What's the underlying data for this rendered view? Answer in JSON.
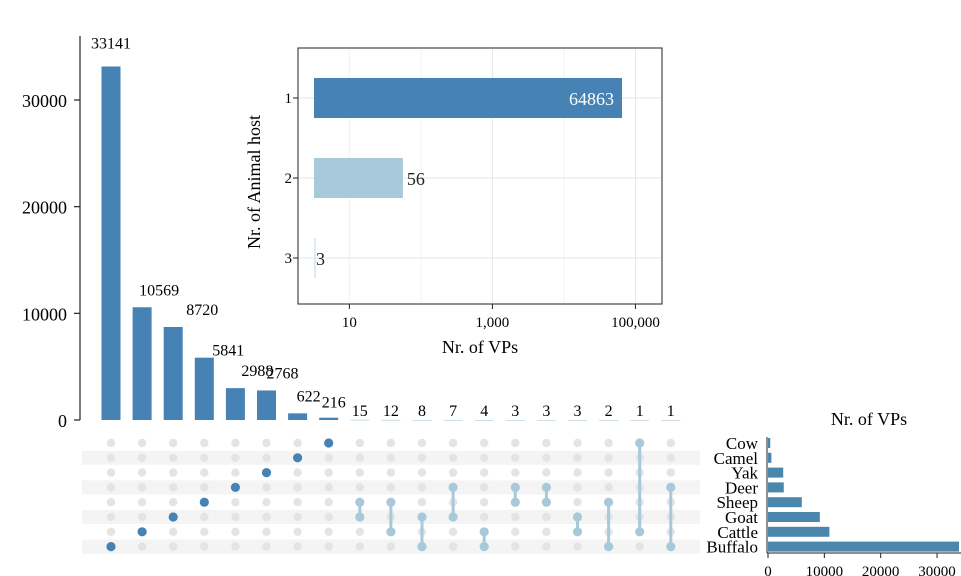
{
  "chart_data": [
    {
      "type": "bar",
      "panel": "intersection-sizes",
      "values": [
        33141,
        10569,
        8720,
        5841,
        2988,
        2768,
        622,
        216,
        15,
        12,
        8,
        7,
        4,
        3,
        3,
        3,
        2,
        1,
        1
      ],
      "value_labels": [
        "33141",
        "10569",
        "8720",
        "5841",
        "2988",
        "2768",
        "622",
        "216",
        "15",
        "12",
        "8",
        "7",
        "4",
        "3",
        "3",
        "3",
        "2",
        "1",
        "1"
      ],
      "ylim": [
        0,
        36000
      ],
      "yticks": [
        0,
        10000,
        20000,
        30000
      ],
      "ytick_labels": [
        "0",
        "10000",
        "20000",
        "30000"
      ],
      "bar_color": "#4682b4",
      "small_bar_color": "#a8c8d8"
    },
    {
      "type": "bar",
      "orientation": "horizontal",
      "panel": "inset-animal-host-count",
      "categories": [
        "1",
        "2",
        "3"
      ],
      "values": [
        64863,
        56,
        3
      ],
      "value_labels": [
        "64863",
        "56",
        "3"
      ],
      "colors": [
        "#4682b4",
        "#a7c9da",
        "#dde9f5"
      ],
      "xlabel": "Nr. of VPs",
      "ylabel": "Nr. of Animal host",
      "xscale": "log",
      "xlim": [
        1,
        200000
      ],
      "xticks": [
        10,
        1000,
        100000
      ],
      "xtick_labels": [
        "10",
        "1,000",
        "100,000"
      ],
      "grid": true
    },
    {
      "type": "bar",
      "orientation": "horizontal",
      "panel": "set-sizes",
      "categories": [
        "Cow",
        "Camel",
        "Yak",
        "Deer",
        "Sheep",
        "Goat",
        "Cattle",
        "Buffalo"
      ],
      "values": [
        400,
        600,
        2700,
        2800,
        6000,
        9200,
        10900,
        33900
      ],
      "xlabel": "Nr. of VPs",
      "xlim": [
        0,
        30000
      ],
      "xticks": [
        0,
        10000,
        20000,
        30000
      ],
      "xtick_labels": [
        "0",
        "10000",
        "20000",
        "30000"
      ],
      "bar_color": "#4b86ad"
    },
    {
      "type": "table",
      "panel": "intersection-matrix",
      "sets_top_to_bottom": [
        "Cow",
        "Camel",
        "Yak",
        "Deer",
        "Sheep",
        "Goat",
        "Cattle",
        "Buffalo"
      ],
      "columns": [
        [
          7
        ],
        [
          6
        ],
        [
          5
        ],
        [
          4
        ],
        [
          3
        ],
        [
          2
        ],
        [
          1
        ],
        [
          0
        ],
        [
          4,
          5
        ],
        [
          4,
          6
        ],
        [
          5,
          7
        ],
        [
          3,
          5
        ],
        [
          6,
          7
        ],
        [
          3,
          4
        ],
        [
          3,
          4
        ],
        [
          5,
          6
        ],
        [
          4,
          7
        ],
        [
          0,
          6
        ],
        [
          3,
          7
        ]
      ],
      "dot_color_single": "#4682b4",
      "dot_color_multi": "#a7c9da",
      "empty_dot_color": "#e4e4e4"
    }
  ]
}
